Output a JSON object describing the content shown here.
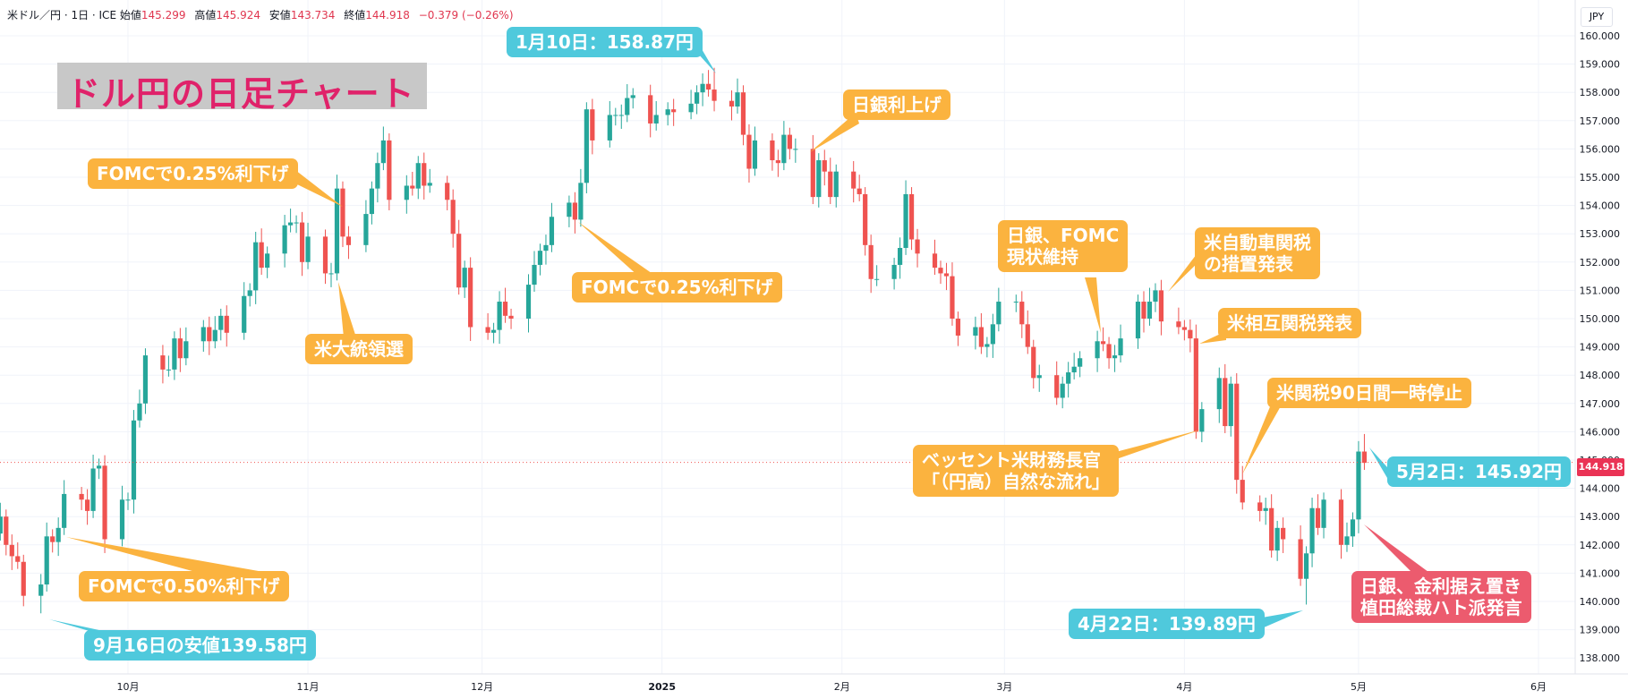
{
  "header": {
    "symbol": "米ドル／円 · 1日 · ICE",
    "open_label": "始値",
    "open": "145.299",
    "high_label": "高値",
    "high": "145.924",
    "low_label": "安値",
    "low": "143.734",
    "close_label": "終値",
    "close": "144.918",
    "change": "−0.379 (−0.26%)"
  },
  "title": "ドル円の日足チャート",
  "currency_label": "JPY",
  "last_price_label": "144.918",
  "annotations": [
    {
      "id": "fomc-050",
      "text": "FOMCで0.50%利下げ"
    },
    {
      "id": "sep16-low",
      "text": "9月16日の安値139.58円"
    },
    {
      "id": "fomc-025-nov",
      "text": "FOMCで0.25%利下げ"
    },
    {
      "id": "us-election",
      "text": "米大統領選"
    },
    {
      "id": "jan10-high",
      "text": "1月10日：158.87円"
    },
    {
      "id": "fomc-025-dec",
      "text": "FOMCで0.25%利下げ"
    },
    {
      "id": "boj-hike",
      "text": "日銀利上げ"
    },
    {
      "id": "boj-fomc-hold",
      "text": "日銀、FOMC\n現状維持"
    },
    {
      "id": "auto-tariff",
      "text": "米自動車関税\nの措置発表"
    },
    {
      "id": "reciprocal-tariff",
      "text": "米相互関税発表"
    },
    {
      "id": "tariff-pause",
      "text": "米関税90日間一時停止"
    },
    {
      "id": "bessent",
      "text": "ベッセント米財務長官\n「（円高）自然な流れ」"
    },
    {
      "id": "apr22-low",
      "text": "4月22日：139.89円"
    },
    {
      "id": "may2-price",
      "text": "5月2日：145.92円"
    },
    {
      "id": "boj-dovish",
      "text": "日銀、金利据え置き\n植田総裁ハト派発言"
    }
  ],
  "colors": {
    "up": "#26a69a",
    "down": "#ef5350",
    "orange": "#fbb33f",
    "teal": "#4fc9dc",
    "red": "#ec5b6e",
    "title": "#e0226a"
  },
  "chart_data": {
    "type": "candlestick",
    "title": "ドル円の日足チャート",
    "ylim": [
      137.7,
      160.6
    ],
    "y_ticks": [
      "138.000",
      "139.000",
      "140.000",
      "141.000",
      "142.000",
      "143.000",
      "144.000",
      "145.000",
      "146.000",
      "147.000",
      "148.000",
      "149.000",
      "150.000",
      "151.000",
      "152.000",
      "153.000",
      "154.000",
      "155.000",
      "156.000",
      "157.000",
      "158.000",
      "159.000",
      "160.000"
    ],
    "x_ticks": [
      {
        "label": "10月",
        "date": "2024-10-01"
      },
      {
        "label": "11月",
        "date": "2024-11-01"
      },
      {
        "label": "12月",
        "date": "2024-12-01"
      },
      {
        "label": "2025",
        "date": "2025-01-01"
      },
      {
        "label": "2月",
        "date": "2025-02-01"
      },
      {
        "label": "3月",
        "date": "2025-03-01"
      },
      {
        "label": "4月",
        "date": "2025-04-01"
      },
      {
        "label": "5月",
        "date": "2025-05-01"
      },
      {
        "label": "6月",
        "date": "2025-06-01"
      }
    ],
    "current_price": 144.918,
    "closes": [
      [
        "2024-09-02",
        143.9
      ],
      [
        "2024-09-03",
        143.6
      ],
      [
        "2024-09-04",
        143.0
      ],
      [
        "2024-09-05",
        142.2
      ],
      [
        "2024-09-06",
        142.4
      ],
      [
        "2024-09-09",
        143.0
      ],
      [
        "2024-09-10",
        142.0
      ],
      [
        "2024-09-11",
        141.6
      ],
      [
        "2024-09-12",
        141.4
      ],
      [
        "2024-09-13",
        140.2
      ],
      [
        "2024-09-16",
        140.6
      ],
      [
        "2024-09-17",
        142.3
      ],
      [
        "2024-09-18",
        142.1
      ],
      [
        "2024-09-19",
        142.6
      ],
      [
        "2024-09-20",
        143.8
      ],
      [
        "2024-09-23",
        143.6
      ],
      [
        "2024-09-24",
        143.2
      ],
      [
        "2024-09-25",
        144.7
      ],
      [
        "2024-09-26",
        144.8
      ],
      [
        "2024-09-27",
        142.2
      ],
      [
        "2024-09-30",
        143.6
      ],
      [
        "2024-10-01",
        143.6
      ],
      [
        "2024-10-02",
        146.4
      ],
      [
        "2024-10-03",
        147.0
      ],
      [
        "2024-10-04",
        148.7
      ],
      [
        "2024-10-07",
        148.2
      ],
      [
        "2024-10-08",
        148.2
      ],
      [
        "2024-10-09",
        149.3
      ],
      [
        "2024-10-10",
        148.6
      ],
      [
        "2024-10-11",
        149.2
      ],
      [
        "2024-10-14",
        149.7
      ],
      [
        "2024-10-15",
        149.2
      ],
      [
        "2024-10-16",
        149.6
      ],
      [
        "2024-10-17",
        150.1
      ],
      [
        "2024-10-18",
        149.5
      ],
      [
        "2024-10-21",
        150.8
      ],
      [
        "2024-10-22",
        151.0
      ],
      [
        "2024-10-23",
        152.7
      ],
      [
        "2024-10-24",
        151.8
      ],
      [
        "2024-10-25",
        152.3
      ],
      [
        "2024-10-28",
        153.3
      ],
      [
        "2024-10-29",
        153.4
      ],
      [
        "2024-10-30",
        153.4
      ],
      [
        "2024-10-31",
        152.0
      ],
      [
        "2024-11-01",
        152.9
      ],
      [
        "2024-11-04",
        151.6
      ],
      [
        "2024-11-05",
        151.6
      ],
      [
        "2024-11-06",
        154.6
      ],
      [
        "2024-11-07",
        152.9
      ],
      [
        "2024-11-08",
        152.6
      ],
      [
        "2024-11-11",
        153.7
      ],
      [
        "2024-11-12",
        154.6
      ],
      [
        "2024-11-13",
        155.5
      ],
      [
        "2024-11-14",
        156.3
      ],
      [
        "2024-11-15",
        154.2
      ],
      [
        "2024-11-18",
        154.7
      ],
      [
        "2024-11-19",
        154.6
      ],
      [
        "2024-11-20",
        155.5
      ],
      [
        "2024-11-21",
        154.7
      ],
      [
        "2024-11-22",
        154.8
      ],
      [
        "2024-11-25",
        154.2
      ],
      [
        "2024-11-26",
        153.0
      ],
      [
        "2024-11-27",
        151.1
      ],
      [
        "2024-11-28",
        151.8
      ],
      [
        "2024-11-29",
        149.7
      ],
      [
        "2024-12-02",
        149.5
      ],
      [
        "2024-12-03",
        149.6
      ],
      [
        "2024-12-04",
        150.6
      ],
      [
        "2024-12-05",
        150.1
      ],
      [
        "2024-12-06",
        150.0
      ],
      [
        "2024-12-09",
        151.2
      ],
      [
        "2024-12-10",
        151.9
      ],
      [
        "2024-12-11",
        152.4
      ],
      [
        "2024-12-12",
        152.6
      ],
      [
        "2024-12-13",
        153.6
      ],
      [
        "2024-12-16",
        154.1
      ],
      [
        "2024-12-17",
        153.5
      ],
      [
        "2024-12-18",
        154.8
      ],
      [
        "2024-12-19",
        157.4
      ],
      [
        "2024-12-20",
        156.3
      ],
      [
        "2024-12-23",
        157.2
      ],
      [
        "2024-12-24",
        157.2
      ],
      [
        "2024-12-25",
        157.2
      ],
      [
        "2024-12-26",
        157.8
      ],
      [
        "2024-12-27",
        157.9
      ],
      [
        "2024-12-30",
        156.9
      ],
      [
        "2024-12-31",
        157.2
      ],
      [
        "2025-01-02",
        157.4
      ],
      [
        "2025-01-03",
        157.3
      ],
      [
        "2025-01-06",
        157.6
      ],
      [
        "2025-01-07",
        158.0
      ],
      [
        "2025-01-08",
        158.3
      ],
      [
        "2025-01-09",
        158.1
      ],
      [
        "2025-01-10",
        157.7
      ],
      [
        "2025-01-13",
        157.5
      ],
      [
        "2025-01-14",
        158.0
      ],
      [
        "2025-01-15",
        156.5
      ],
      [
        "2025-01-16",
        155.3
      ],
      [
        "2025-01-17",
        156.3
      ],
      [
        "2025-01-20",
        155.6
      ],
      [
        "2025-01-21",
        155.5
      ],
      [
        "2025-01-22",
        156.5
      ],
      [
        "2025-01-23",
        156.0
      ],
      [
        "2025-01-24",
        156.0
      ],
      [
        "2025-01-27",
        154.3
      ],
      [
        "2025-01-28",
        155.6
      ],
      [
        "2025-01-29",
        155.2
      ],
      [
        "2025-01-30",
        154.3
      ],
      [
        "2025-01-31",
        155.2
      ],
      [
        "2025-02-03",
        154.6
      ],
      [
        "2025-02-04",
        154.4
      ],
      [
        "2025-02-05",
        152.6
      ],
      [
        "2025-02-06",
        151.4
      ],
      [
        "2025-02-07",
        151.4
      ],
      [
        "2025-02-10",
        151.9
      ],
      [
        "2025-02-11",
        152.5
      ],
      [
        "2025-02-12",
        154.4
      ],
      [
        "2025-02-13",
        152.8
      ],
      [
        "2025-02-14",
        152.3
      ],
      [
        "2025-02-17",
        151.8
      ],
      [
        "2025-02-18",
        151.6
      ],
      [
        "2025-02-19",
        151.5
      ],
      [
        "2025-02-20",
        150.0
      ],
      [
        "2025-02-21",
        149.4
      ],
      [
        "2025-02-24",
        149.7
      ],
      [
        "2025-02-25",
        149.0
      ],
      [
        "2025-02-26",
        149.1
      ],
      [
        "2025-02-27",
        149.8
      ],
      [
        "2025-02-28",
        150.6
      ],
      [
        "2025-03-03",
        150.6
      ],
      [
        "2025-03-04",
        149.8
      ],
      [
        "2025-03-05",
        149.0
      ],
      [
        "2025-03-06",
        147.9
      ],
      [
        "2025-03-07",
        148.0
      ],
      [
        "2025-03-10",
        147.2
      ],
      [
        "2025-03-11",
        147.7
      ],
      [
        "2025-03-12",
        148.1
      ],
      [
        "2025-03-13",
        148.3
      ],
      [
        "2025-03-14",
        148.6
      ],
      [
        "2025-03-17",
        149.2
      ],
      [
        "2025-03-18",
        149.1
      ],
      [
        "2025-03-19",
        148.6
      ],
      [
        "2025-03-20",
        148.7
      ],
      [
        "2025-03-21",
        149.3
      ],
      [
        "2025-03-24",
        150.6
      ],
      [
        "2025-03-25",
        150.0
      ],
      [
        "2025-03-26",
        150.6
      ],
      [
        "2025-03-27",
        151.0
      ],
      [
        "2025-03-28",
        149.9
      ],
      [
        "2025-03-31",
        149.7
      ],
      [
        "2025-04-01",
        149.6
      ],
      [
        "2025-04-02",
        149.3
      ],
      [
        "2025-04-03",
        146.0
      ],
      [
        "2025-04-04",
        146.8
      ],
      [
        "2025-04-07",
        147.9
      ],
      [
        "2025-04-08",
        146.2
      ],
      [
        "2025-04-09",
        147.7
      ],
      [
        "2025-04-10",
        144.3
      ],
      [
        "2025-04-11",
        143.5
      ],
      [
        "2025-04-14",
        143.2
      ],
      [
        "2025-04-15",
        143.3
      ],
      [
        "2025-04-16",
        141.8
      ],
      [
        "2025-04-17",
        142.6
      ],
      [
        "2025-04-18",
        142.2
      ],
      [
        "2025-04-21",
        140.8
      ],
      [
        "2025-04-22",
        141.7
      ],
      [
        "2025-04-23",
        143.3
      ],
      [
        "2025-04-24",
        142.6
      ],
      [
        "2025-04-25",
        143.6
      ],
      [
        "2025-04-28",
        142.0
      ],
      [
        "2025-04-29",
        142.3
      ],
      [
        "2025-04-30",
        142.9
      ],
      [
        "2025-05-01",
        145.3
      ],
      [
        "2025-05-02",
        144.9
      ]
    ],
    "annotated_points": [
      {
        "date": "2024-09-16",
        "price": 139.58
      },
      {
        "date": "2025-01-10",
        "price": 158.87
      },
      {
        "date": "2025-04-22",
        "price": 139.89
      },
      {
        "date": "2025-05-02",
        "price": 145.92
      }
    ]
  }
}
